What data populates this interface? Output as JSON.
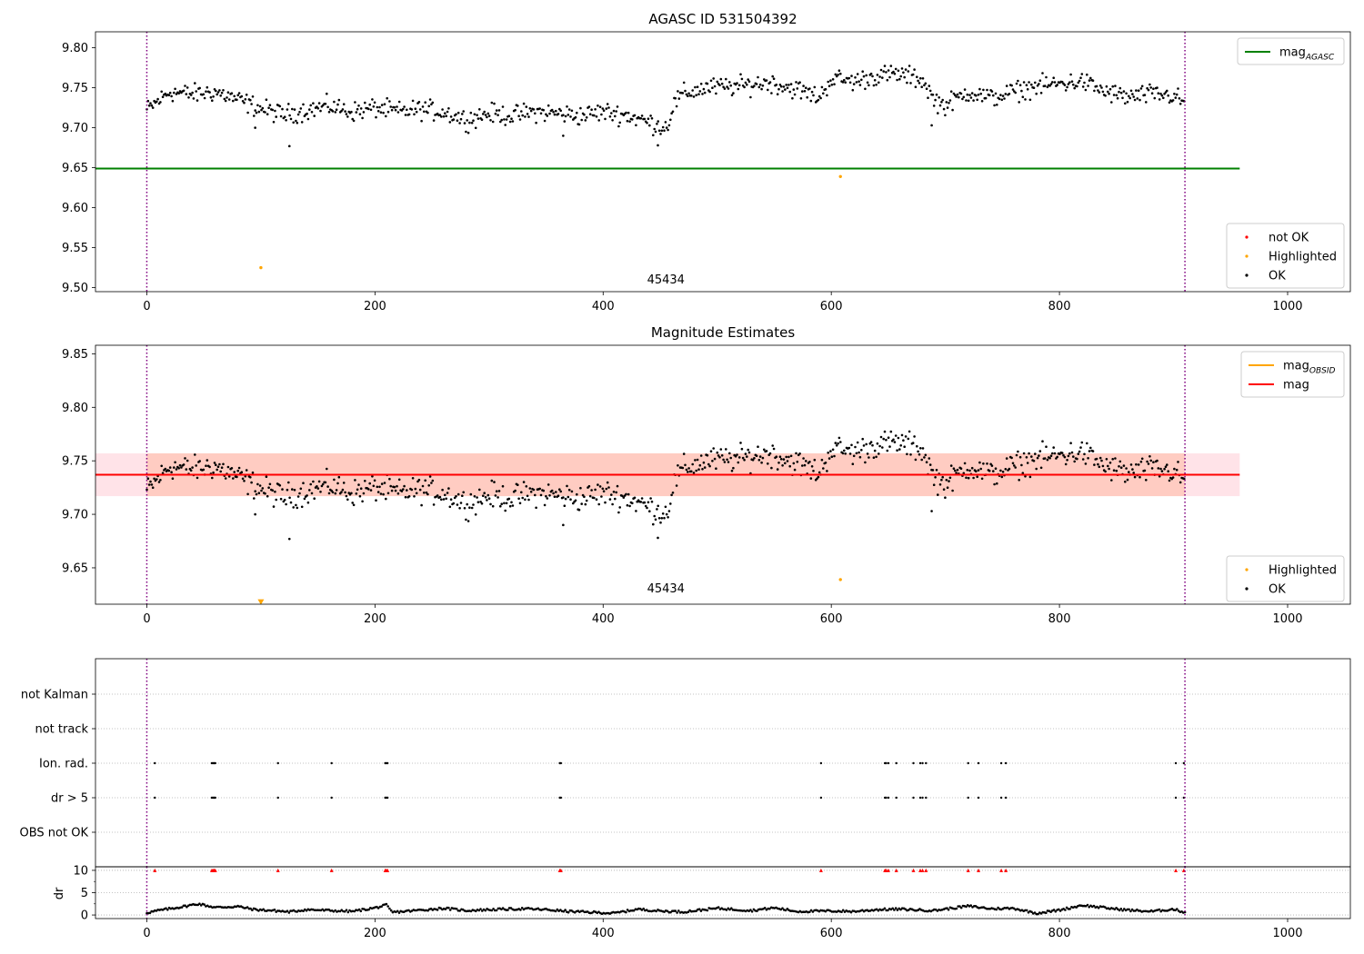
{
  "chart_data": [
    {
      "type": "scatter",
      "title": "AGASC ID 531504392",
      "xlim": [
        -45,
        1055
      ],
      "ylim": [
        9.495,
        9.82
      ],
      "xticks": [
        0,
        200,
        400,
        600,
        800,
        1000
      ],
      "yticks": [
        9.5,
        9.55,
        9.6,
        9.65,
        9.7,
        9.75,
        9.8
      ],
      "ytick_labels": [
        "9.50",
        "9.55",
        "9.60",
        "9.65",
        "9.70",
        "9.75",
        "9.80"
      ],
      "grid": false,
      "legend_upper": {
        "placement": "top-right",
        "entries": [
          {
            "label": "mag",
            "sub": "AGASC",
            "color": "#008000",
            "kind": "line"
          }
        ]
      },
      "legend_lower": {
        "placement": "bottom-right",
        "entries": [
          {
            "label": "not OK",
            "color": "#ff0000",
            "kind": "dot"
          },
          {
            "label": "Highlighted",
            "color": "#ffa500",
            "kind": "dot"
          },
          {
            "label": "OK",
            "color": "#000000",
            "kind": "dot"
          }
        ]
      },
      "hlines": [
        {
          "y": 9.649,
          "x0": -45,
          "x1": 958,
          "color": "#008000"
        }
      ],
      "vlines": [
        {
          "x": 0,
          "color": "#800080",
          "style": "dotted"
        },
        {
          "x": 910,
          "color": "#800080",
          "style": "dotted"
        }
      ],
      "annotation": {
        "text": "45434",
        "x": 455,
        "y": 9.505
      },
      "series": {
        "ok_shape": [
          [
            0,
            9.722
          ],
          [
            20,
            9.745
          ],
          [
            40,
            9.742
          ],
          [
            60,
            9.745
          ],
          [
            80,
            9.735
          ],
          [
            100,
            9.724
          ],
          [
            120,
            9.716
          ],
          [
            140,
            9.722
          ],
          [
            160,
            9.727
          ],
          [
            180,
            9.72
          ],
          [
            200,
            9.725
          ],
          [
            220,
            9.72
          ],
          [
            240,
            9.723
          ],
          [
            260,
            9.72
          ],
          [
            280,
            9.71
          ],
          [
            300,
            9.718
          ],
          [
            320,
            9.715
          ],
          [
            340,
            9.72
          ],
          [
            360,
            9.718
          ],
          [
            380,
            9.715
          ],
          [
            400,
            9.72
          ],
          [
            420,
            9.716
          ],
          [
            440,
            9.707
          ],
          [
            455,
            9.7
          ],
          [
            458,
            9.71
          ],
          [
            462,
            9.73
          ],
          [
            470,
            9.742
          ],
          [
            490,
            9.75
          ],
          [
            520,
            9.752
          ],
          [
            545,
            9.757
          ],
          [
            570,
            9.748
          ],
          [
            590,
            9.738
          ],
          [
            600,
            9.762
          ],
          [
            620,
            9.758
          ],
          [
            640,
            9.765
          ],
          [
            660,
            9.767
          ],
          [
            680,
            9.76
          ],
          [
            690,
            9.735
          ],
          [
            700,
            9.728
          ],
          [
            720,
            9.745
          ],
          [
            740,
            9.737
          ],
          [
            760,
            9.745
          ],
          [
            780,
            9.752
          ],
          [
            800,
            9.755
          ],
          [
            820,
            9.758
          ],
          [
            840,
            9.745
          ],
          [
            860,
            9.738
          ],
          [
            880,
            9.742
          ],
          [
            900,
            9.74
          ],
          [
            910,
            9.73
          ]
        ],
        "ok_amplitude": 0.012,
        "ok_outliers": [
          [
            125,
            9.677
          ],
          [
            448,
            9.678
          ],
          [
            95,
            9.7
          ],
          [
            688,
            9.703
          ],
          [
            365,
            9.69
          ]
        ],
        "highlighted": [
          [
            100,
            9.525
          ],
          [
            608,
            9.639
          ]
        ]
      }
    },
    {
      "type": "scatter",
      "title": "Magnitude Estimates",
      "xlim": [
        -45,
        1055
      ],
      "ylim": [
        9.616,
        9.858
      ],
      "xticks": [
        0,
        200,
        400,
        600,
        800,
        1000
      ],
      "yticks": [
        9.65,
        9.7,
        9.75,
        9.8,
        9.85
      ],
      "ytick_labels": [
        "9.65",
        "9.70",
        "9.75",
        "9.80",
        "9.85"
      ],
      "grid": false,
      "legend_upper": {
        "placement": "top-right",
        "entries": [
          {
            "label": "mag",
            "sub": "OBSID",
            "color": "#ffa500",
            "kind": "line"
          },
          {
            "label": "mag",
            "sub": "",
            "color": "#ff0000",
            "kind": "line"
          }
        ]
      },
      "legend_lower": {
        "placement": "bottom-right",
        "entries": [
          {
            "label": "Highlighted",
            "color": "#ffa500",
            "kind": "dot"
          },
          {
            "label": "OK",
            "color": "#000000",
            "kind": "dot"
          }
        ]
      },
      "band_outer": {
        "y0": 9.717,
        "y1": 9.757,
        "x0": -45,
        "x1": 958,
        "color": "#ffc0cb"
      },
      "band_inner": {
        "y0": 9.717,
        "y1": 9.757,
        "x0": -45,
        "x1": 958,
        "color": "#ffa07a"
      },
      "hline": {
        "y": 9.737,
        "x0": -45,
        "x1": 958,
        "color": "#ff0000"
      },
      "obsid_line": {
        "y": 9.737,
        "x0": 0,
        "x1": 910,
        "color": "#ffa500"
      },
      "vlines": [
        {
          "x": 0,
          "color": "#800080",
          "style": "dotted"
        },
        {
          "x": 910,
          "color": "#800080",
          "style": "dotted"
        }
      ],
      "annotation": {
        "text": "45434",
        "x": 455,
        "y": 9.627
      },
      "offscale_marker": {
        "x": 100,
        "y": 9.618,
        "color": "#ffa500"
      },
      "highlighted": [
        [
          608,
          9.639
        ]
      ]
    },
    {
      "type": "scatter",
      "title": "",
      "xlim": [
        -45,
        1055
      ],
      "categories": [
        "not Kalman",
        "not track",
        "Ion. rad.",
        "dr > 5",
        "OBS not OK"
      ],
      "vlines": [
        {
          "x": 0,
          "color": "#800080",
          "style": "dotted"
        },
        {
          "x": 910,
          "color": "#800080",
          "style": "dotted"
        }
      ],
      "flag_x": [
        7,
        57,
        58,
        59,
        60,
        115,
        162,
        209,
        210,
        211,
        362,
        363,
        591,
        647,
        648,
        650,
        657,
        672,
        678,
        680,
        683,
        720,
        729,
        749,
        753,
        902,
        909
      ],
      "flag_rows": [
        "Ion. rad.",
        "dr > 5"
      ]
    },
    {
      "type": "scatter",
      "title": "",
      "ylabel": "dr",
      "xlim": [
        -45,
        1055
      ],
      "ylim": [
        -0.8,
        10.8
      ],
      "xticks": [
        0,
        200,
        400,
        600,
        800,
        1000
      ],
      "yticks": [
        0,
        5,
        10
      ],
      "ytick_labels": [
        "0",
        "5",
        "10"
      ],
      "grid": true,
      "vlines": [
        {
          "x": 0,
          "color": "#800080",
          "style": "dotted"
        },
        {
          "x": 910,
          "color": "#800080",
          "style": "dotted"
        }
      ],
      "capped_value": 10,
      "dr_shape": [
        [
          0,
          0.5
        ],
        [
          10,
          1.0
        ],
        [
          30,
          1.8
        ],
        [
          45,
          2.5
        ],
        [
          60,
          1.7
        ],
        [
          80,
          1.9
        ],
        [
          95,
          1.2
        ],
        [
          110,
          1.0
        ],
        [
          125,
          0.7
        ],
        [
          140,
          1.2
        ],
        [
          160,
          1.0
        ],
        [
          180,
          0.8
        ],
        [
          200,
          1.6
        ],
        [
          210,
          2.2
        ],
        [
          215,
          0.6
        ],
        [
          230,
          0.9
        ],
        [
          260,
          1.5
        ],
        [
          280,
          1.0
        ],
        [
          300,
          1.2
        ],
        [
          330,
          1.4
        ],
        [
          350,
          1.2
        ],
        [
          370,
          0.8
        ],
        [
          390,
          0.6
        ],
        [
          410,
          0.4
        ],
        [
          430,
          1.3
        ],
        [
          450,
          0.9
        ],
        [
          470,
          0.7
        ],
        [
          500,
          1.5
        ],
        [
          530,
          1.0
        ],
        [
          550,
          1.6
        ],
        [
          570,
          0.8
        ],
        [
          600,
          0.9
        ],
        [
          620,
          0.8
        ],
        [
          640,
          1.2
        ],
        [
          660,
          1.3
        ],
        [
          690,
          1.0
        ],
        [
          720,
          2.0
        ],
        [
          740,
          1.4
        ],
        [
          760,
          1.5
        ],
        [
          780,
          0.4
        ],
        [
          800,
          1.1
        ],
        [
          820,
          2.2
        ],
        [
          840,
          1.6
        ],
        [
          860,
          1.1
        ],
        [
          880,
          0.8
        ],
        [
          900,
          1.3
        ],
        [
          910,
          0.6
        ]
      ]
    }
  ]
}
